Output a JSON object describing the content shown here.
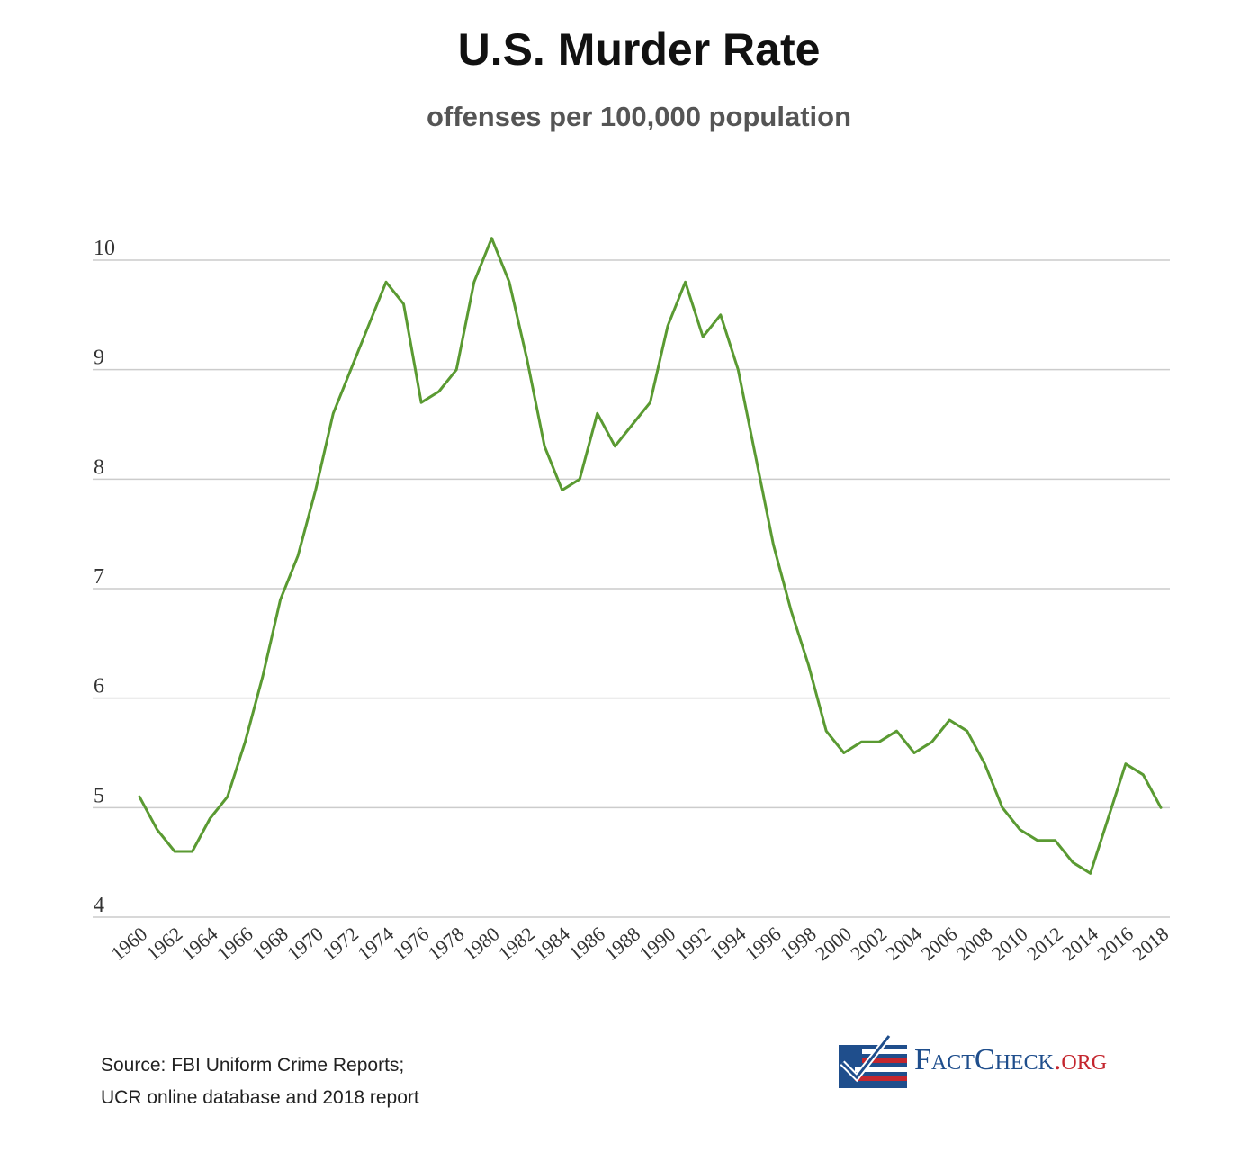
{
  "chart_data": {
    "type": "line",
    "title": "U.S. Murder Rate",
    "subtitle": "offenses per 100,000 population",
    "xlabel": "",
    "ylabel": "",
    "ylim": [
      4,
      10
    ],
    "y_ticks": [
      "10",
      "9",
      "8",
      "7",
      "6",
      "5",
      "4"
    ],
    "x_tick_labels": [
      "1960",
      "1962",
      "1964",
      "1966",
      "1968",
      "1970",
      "1972",
      "1974",
      "1976",
      "1978",
      "1980",
      "1982",
      "1984",
      "1986",
      "1988",
      "1990",
      "1992",
      "1994",
      "1996",
      "1998",
      "2000",
      "2002",
      "2004",
      "2006",
      "2008",
      "2010",
      "2012",
      "2014",
      "2016",
      "2018"
    ],
    "grid": true,
    "line_color": "#5a9a32",
    "series": [
      {
        "x": [
          1960,
          1961,
          1962,
          1963,
          1964,
          1965,
          1966,
          1967,
          1968,
          1969,
          1970,
          1971,
          1972,
          1973,
          1974,
          1975,
          1976,
          1977,
          1978,
          1979,
          1980,
          1981,
          1982,
          1983,
          1984,
          1985,
          1986,
          1987,
          1988,
          1989,
          1990,
          1991,
          1992,
          1993,
          1994,
          1995,
          1996,
          1997,
          1998,
          1999,
          2000,
          2001,
          2002,
          2003,
          2004,
          2005,
          2006,
          2007,
          2008,
          2009,
          2010,
          2011,
          2012,
          2013,
          2014,
          2015,
          2016,
          2017,
          2018
        ],
        "values": [
          5.1,
          4.8,
          4.6,
          4.6,
          4.9,
          5.1,
          5.6,
          6.2,
          6.9,
          7.3,
          7.9,
          8.6,
          9.0,
          9.4,
          9.8,
          9.6,
          8.7,
          8.8,
          9.0,
          9.8,
          10.2,
          9.8,
          9.1,
          8.3,
          7.9,
          8.0,
          8.6,
          8.3,
          8.5,
          8.7,
          9.4,
          9.8,
          9.3,
          9.5,
          9.0,
          8.2,
          7.4,
          6.8,
          6.3,
          5.7,
          5.5,
          5.6,
          5.6,
          5.7,
          5.5,
          5.6,
          5.8,
          5.7,
          5.4,
          5.0,
          4.8,
          4.7,
          4.7,
          4.5,
          4.4,
          4.9,
          5.4,
          5.3,
          5.0
        ]
      }
    ]
  },
  "source": {
    "line1": "Source: FBI Uniform Crime Reports;",
    "line2": "UCR online database and 2018 report"
  },
  "logo": {
    "text_main": "FactCheck",
    "text_org": ".org",
    "icon": "flag-check-icon",
    "colors": {
      "blue": "#1f4e8c",
      "red": "#c4262e"
    }
  }
}
